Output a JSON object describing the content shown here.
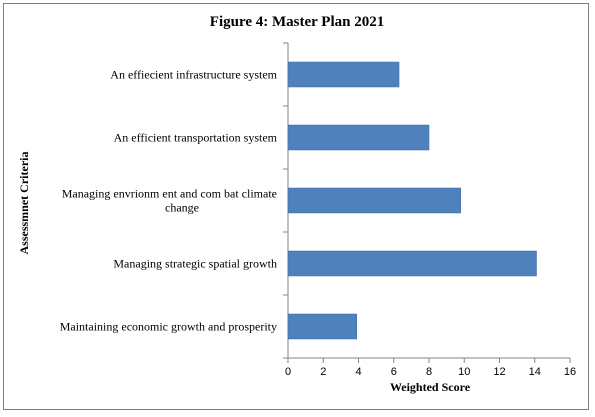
{
  "chart_data": {
    "type": "bar",
    "orientation": "horizontal",
    "title": "Figure  4: Master Plan 2021",
    "xlabel": "Weighted Score",
    "ylabel": "Assessmnet Criteria",
    "xlim": [
      0,
      16
    ],
    "xticks": [
      0,
      2,
      4,
      6,
      8,
      10,
      12,
      14,
      16
    ],
    "grid": false,
    "legend": "none",
    "bar_color": "#4f81bd",
    "categories": [
      [
        "An effiecient infrastructure system"
      ],
      [
        "An efficient transportation system"
      ],
      [
        "Managing envrionm ent and com bat climate",
        "change"
      ],
      [
        "Managing strategic spatial growth"
      ],
      [
        "Maintaining economic growth and prosperity"
      ]
    ],
    "values": [
      6.3,
      8.0,
      9.8,
      14.1,
      3.9
    ]
  }
}
